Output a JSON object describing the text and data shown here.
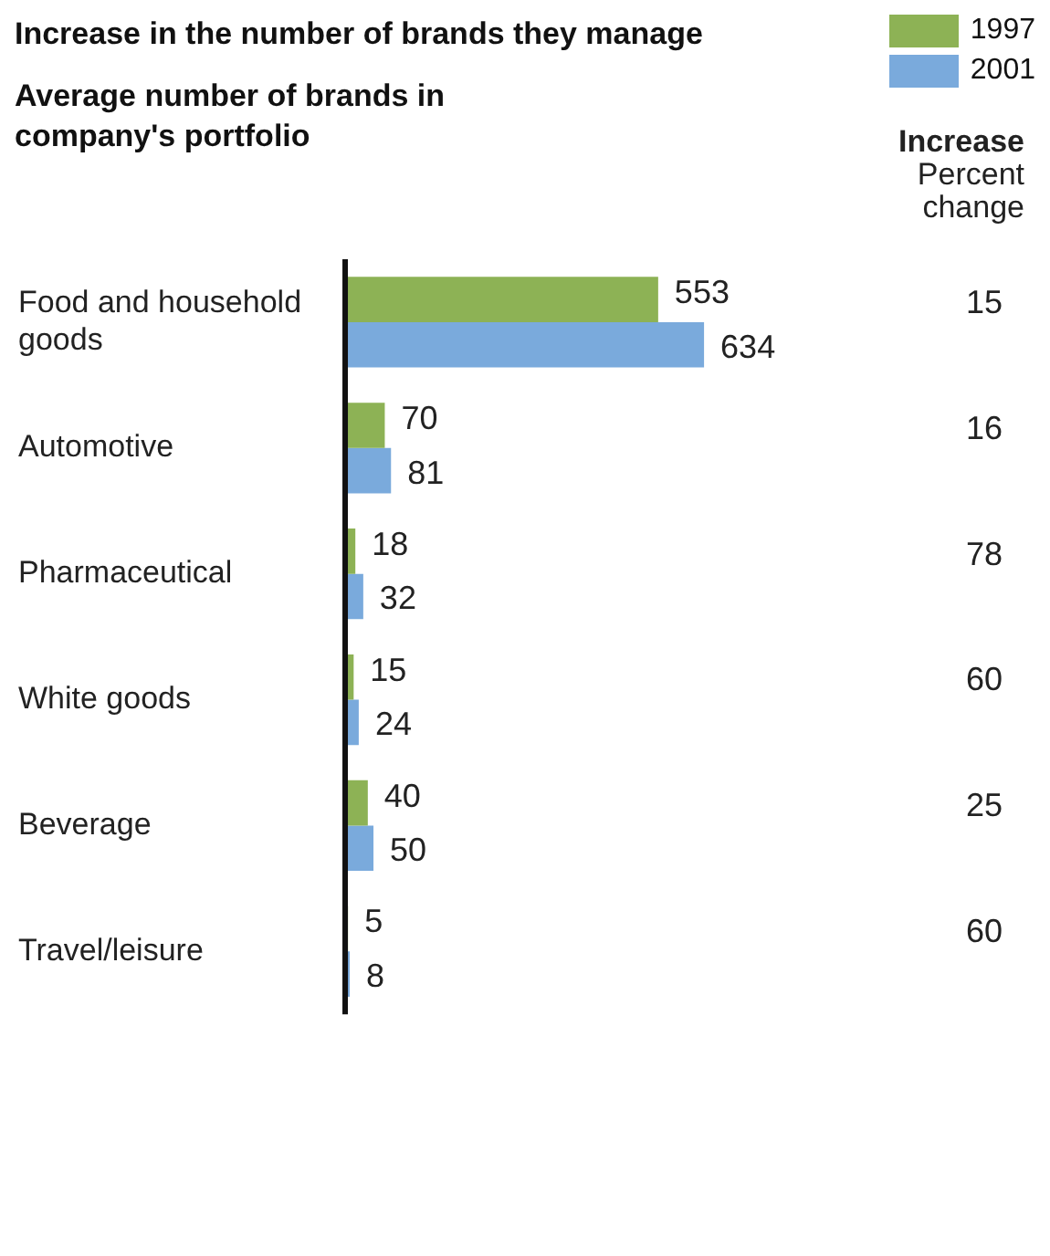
{
  "chart_data": {
    "type": "bar",
    "orientation": "horizontal",
    "title": "Increase in the number of brands they manage",
    "subtitle": "Average number of brands in company's portfolio",
    "categories": [
      "Food and household goods",
      "Automotive",
      "Pharmaceutical",
      "White goods",
      "Beverage",
      "Travel/leisure"
    ],
    "series": [
      {
        "name": "1997",
        "color": "#8db255",
        "values": [
          553,
          70,
          18,
          15,
          40,
          5
        ]
      },
      {
        "name": "2001",
        "color": "#7aaadc",
        "values": [
          634,
          81,
          32,
          24,
          50,
          8
        ]
      }
    ],
    "data_labels": true,
    "legend": "top right",
    "annotations": [
      "Increase",
      "Percent change",
      "15",
      "16",
      "78",
      "60",
      "25",
      "60"
    ]
  }
}
